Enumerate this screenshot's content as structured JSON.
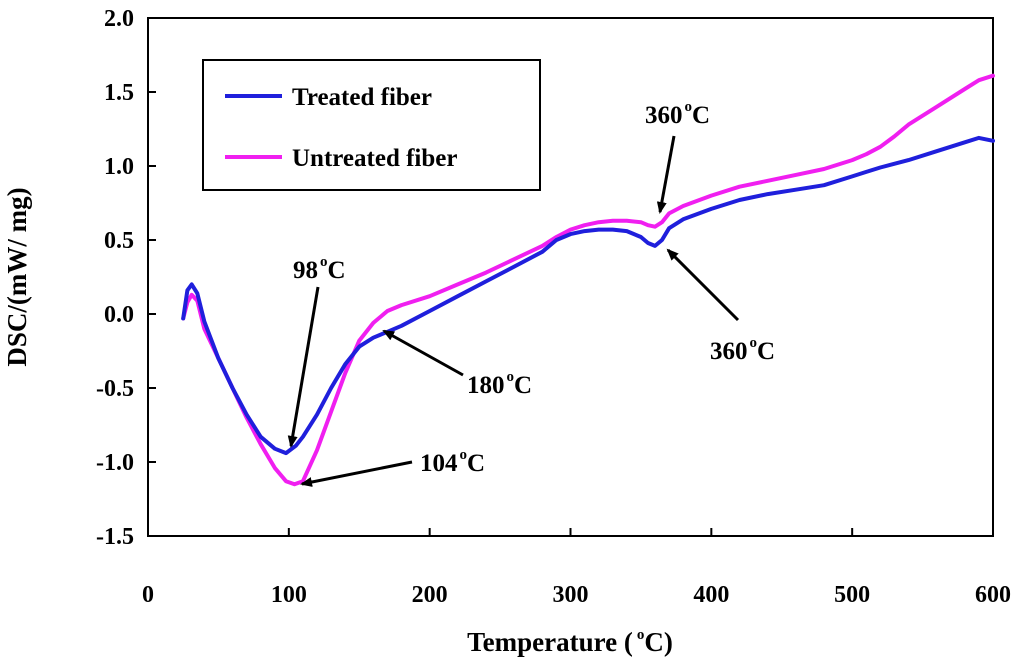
{
  "chart_data": {
    "type": "line",
    "title": "",
    "xlabel": "Temperature (",
    "xlabel_unit": "C)",
    "degree": "o",
    "ylabel": "DSC/(mW/ mg)",
    "xlim": [
      0,
      600
    ],
    "ylim": [
      -1.5,
      2.0
    ],
    "xticks": [
      "0",
      "100",
      "200",
      "300",
      "400",
      "500",
      "600"
    ],
    "yticks": [
      "-1.5",
      "-1.0",
      "-0.5",
      "0.0",
      "0.5",
      "1.0",
      "1.5",
      "2.0"
    ],
    "xtick_values": [
      0,
      100,
      200,
      300,
      400,
      500,
      600
    ],
    "ytick_values": [
      -1.5,
      -1.0,
      -0.5,
      0.0,
      0.5,
      1.0,
      1.5,
      2.0
    ],
    "grid": false,
    "legend_position": "top-left",
    "series": [
      {
        "name": "Treated fiber",
        "color": "#1f1fdc",
        "x": [
          25,
          28,
          31,
          35,
          40,
          50,
          60,
          70,
          80,
          90,
          98,
          105,
          110,
          120,
          130,
          140,
          150,
          160,
          170,
          180,
          200,
          220,
          240,
          260,
          280,
          290,
          300,
          310,
          320,
          330,
          340,
          350,
          355,
          360,
          365,
          370,
          380,
          400,
          420,
          440,
          460,
          480,
          500,
          510,
          520,
          540,
          560,
          580,
          590,
          600
        ],
        "y": [
          -0.03,
          0.16,
          0.2,
          0.14,
          -0.05,
          -0.3,
          -0.5,
          -0.68,
          -0.83,
          -0.91,
          -0.94,
          -0.89,
          -0.83,
          -0.68,
          -0.5,
          -0.34,
          -0.22,
          -0.16,
          -0.12,
          -0.08,
          0.02,
          0.12,
          0.22,
          0.32,
          0.42,
          0.5,
          0.54,
          0.56,
          0.57,
          0.57,
          0.56,
          0.52,
          0.48,
          0.46,
          0.5,
          0.58,
          0.64,
          0.71,
          0.77,
          0.81,
          0.84,
          0.87,
          0.93,
          0.96,
          0.99,
          1.04,
          1.1,
          1.16,
          1.19,
          1.17
        ]
      },
      {
        "name": "Untreated fiber",
        "color": "#f01ff0",
        "x": [
          25,
          28,
          31,
          35,
          40,
          50,
          60,
          70,
          80,
          90,
          98,
          104,
          110,
          120,
          130,
          140,
          150,
          160,
          170,
          180,
          200,
          220,
          240,
          260,
          280,
          290,
          300,
          310,
          320,
          330,
          340,
          350,
          355,
          360,
          365,
          370,
          380,
          400,
          420,
          440,
          460,
          480,
          500,
          510,
          520,
          530,
          540,
          560,
          580,
          590,
          600
        ],
        "y": [
          -0.03,
          0.08,
          0.13,
          0.09,
          -0.1,
          -0.3,
          -0.5,
          -0.7,
          -0.88,
          -1.04,
          -1.13,
          -1.15,
          -1.13,
          -0.92,
          -0.66,
          -0.4,
          -0.18,
          -0.06,
          0.02,
          0.06,
          0.12,
          0.2,
          0.28,
          0.37,
          0.46,
          0.52,
          0.57,
          0.6,
          0.62,
          0.63,
          0.63,
          0.62,
          0.6,
          0.59,
          0.62,
          0.68,
          0.73,
          0.8,
          0.86,
          0.9,
          0.94,
          0.98,
          1.04,
          1.08,
          1.13,
          1.2,
          1.28,
          1.4,
          1.52,
          1.58,
          1.61
        ]
      }
    ],
    "annotations": [
      {
        "id": "ann-98",
        "value": "98",
        "unit": "C",
        "point": [
          98,
          -0.94
        ]
      },
      {
        "id": "ann-104",
        "value": "104",
        "unit": "C",
        "point": [
          104,
          -1.15
        ]
      },
      {
        "id": "ann-180",
        "value": "180",
        "unit": "C",
        "point": [
          168,
          -0.08
        ]
      },
      {
        "id": "ann-360-untreated",
        "value": "360",
        "unit": "C",
        "point": [
          360,
          0.59
        ]
      },
      {
        "id": "ann-360-treated",
        "value": "360",
        "unit": "C",
        "point": [
          360,
          0.46
        ]
      }
    ]
  }
}
